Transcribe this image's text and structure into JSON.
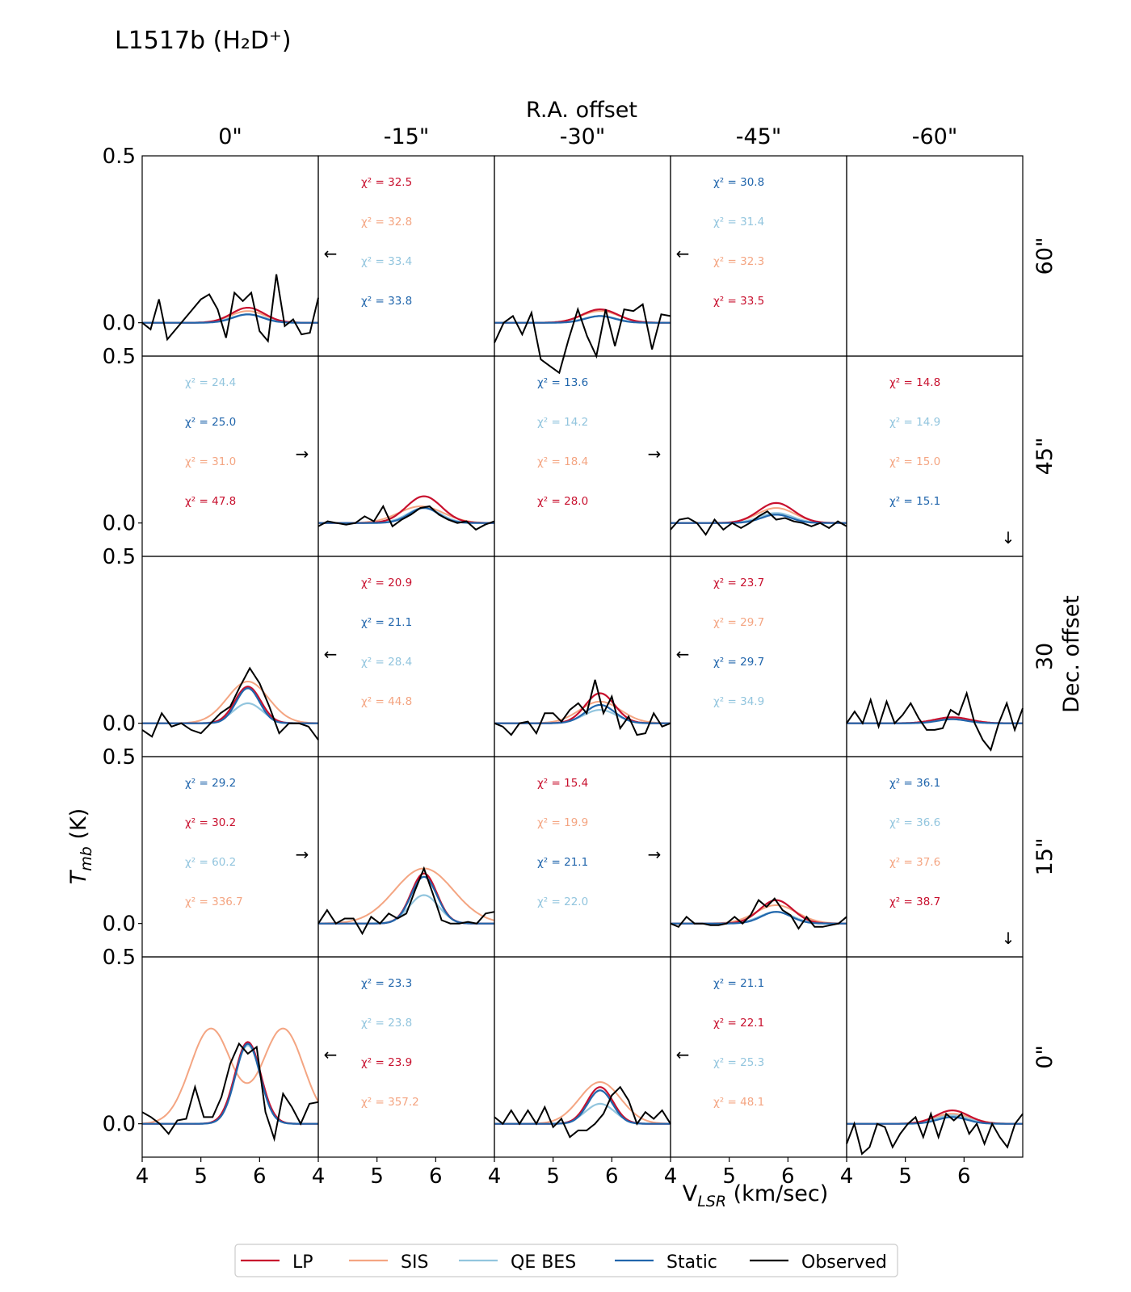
{
  "title": "L1517b (H₂D⁺)",
  "chart_data": {
    "type": "line",
    "title": "L1517b (H2D+)",
    "top_axis_label": "R.A. offset",
    "right_axis_label": "Dec. offset",
    "xlabel": "V_LSR (km/sec)",
    "ylabel": "T_mb (K)",
    "xlim": [
      4,
      7
    ],
    "ylim": [
      -0.1,
      0.5
    ],
    "x_ticks": [
      "4",
      "5",
      "6"
    ],
    "y_ticks": [
      "0.0",
      "0.5"
    ],
    "columns": [
      "0\"",
      "-15\"",
      "-30\"",
      "-45\"",
      "-60\""
    ],
    "rows": [
      "60\"",
      "45\"",
      "30",
      "15\"",
      "0\""
    ],
    "colors": {
      "LP": "#c8102e",
      "SIS": "#f4a582",
      "QE BES": "#92c5de",
      "Static": "#2166ac",
      "Observed": "#000000"
    },
    "legend": {
      "position": "bottom-center",
      "entries": [
        "LP",
        "SIS",
        "QE BES",
        "Static",
        "Observed"
      ]
    },
    "chi_label": "χ² =",
    "panels": [
      {
        "row": 0,
        "col": 0,
        "arrow": "",
        "models": {
          "LP": {
            "amp": 0.045,
            "center": 5.8,
            "sigma": 0.28
          },
          "SIS": {
            "amp": 0.035,
            "center": 5.8,
            "sigma": 0.3
          },
          "QE BES": {
            "amp": 0.025,
            "center": 5.8,
            "sigma": 0.28
          },
          "Static": {
            "amp": 0.025,
            "center": 5.8,
            "sigma": 0.25
          }
        },
        "observed": [
          0.0,
          -0.02,
          0.07,
          -0.05,
          -0.02,
          0.01,
          0.04,
          0.07,
          0.085,
          0.04,
          -0.045,
          0.09,
          0.065,
          0.09,
          -0.025,
          -0.055,
          0.145,
          -0.01,
          0.01,
          -0.035,
          -0.03,
          0.075
        ],
        "chi2": []
      },
      {
        "row": 0,
        "col": 1,
        "arrow": "←",
        "models": null,
        "observed": [],
        "chi2": [
          {
            "model": "LP",
            "value": "32.5"
          },
          {
            "model": "SIS",
            "value": "32.8"
          },
          {
            "model": "QE BES",
            "value": "33.4"
          },
          {
            "model": "Static",
            "value": "33.8"
          }
        ]
      },
      {
        "row": 0,
        "col": 2,
        "arrow": "",
        "models": {
          "LP": {
            "amp": 0.04,
            "center": 5.8,
            "sigma": 0.3
          },
          "SIS": {
            "amp": 0.035,
            "center": 5.8,
            "sigma": 0.32
          },
          "QE BES": {
            "amp": 0.02,
            "center": 5.8,
            "sigma": 0.28
          },
          "Static": {
            "amp": 0.02,
            "center": 5.8,
            "sigma": 0.25
          }
        },
        "observed": [
          -0.06,
          0.0,
          0.02,
          -0.035,
          0.03,
          -0.11,
          -0.13,
          -0.15,
          -0.05,
          0.04,
          -0.04,
          -0.1,
          0.04,
          -0.07,
          0.04,
          0.035,
          0.055,
          -0.08,
          0.025,
          0.02
        ],
        "chi2": []
      },
      {
        "row": 0,
        "col": 3,
        "arrow": "←",
        "models": null,
        "observed": [],
        "chi2": [
          {
            "model": "Static",
            "value": "30.8"
          },
          {
            "model": "QE BES",
            "value": "31.4"
          },
          {
            "model": "SIS",
            "value": "32.3"
          },
          {
            "model": "LP",
            "value": "33.5"
          }
        ]
      },
      {
        "row": 0,
        "col": 4,
        "arrow": "",
        "models": null,
        "observed": [],
        "chi2": []
      },
      {
        "row": 1,
        "col": 0,
        "arrow": "→",
        "models": null,
        "observed": [],
        "chi2": [
          {
            "model": "QE BES",
            "value": "24.4"
          },
          {
            "model": "Static",
            "value": "25.0"
          },
          {
            "model": "SIS",
            "value": "31.0"
          },
          {
            "model": "LP",
            "value": "47.8"
          }
        ]
      },
      {
        "row": 1,
        "col": 1,
        "arrow": "",
        "models": {
          "LP": {
            "amp": 0.08,
            "center": 5.8,
            "sigma": 0.3
          },
          "SIS": {
            "amp": 0.05,
            "center": 5.75,
            "sigma": 0.38
          },
          "QE BES": {
            "amp": 0.045,
            "center": 5.8,
            "sigma": 0.28
          },
          "Static": {
            "amp": 0.045,
            "center": 5.8,
            "sigma": 0.25
          }
        },
        "observed": [
          -0.01,
          0.005,
          0.0,
          -0.005,
          0.0,
          0.02,
          0.005,
          0.05,
          -0.01,
          0.01,
          0.025,
          0.045,
          0.05,
          0.025,
          0.01,
          0.0,
          0.005,
          -0.02,
          -0.005,
          0.005
        ],
        "chi2": []
      },
      {
        "row": 1,
        "col": 2,
        "arrow": "→",
        "models": null,
        "observed": [],
        "chi2": [
          {
            "model": "Static",
            "value": "13.6"
          },
          {
            "model": "QE BES",
            "value": "14.2"
          },
          {
            "model": "SIS",
            "value": "18.4"
          },
          {
            "model": "LP",
            "value": "28.0"
          }
        ]
      },
      {
        "row": 1,
        "col": 3,
        "arrow": "",
        "models": {
          "LP": {
            "amp": 0.06,
            "center": 5.8,
            "sigma": 0.3
          },
          "SIS": {
            "amp": 0.045,
            "center": 5.8,
            "sigma": 0.32
          },
          "QE BES": {
            "amp": 0.03,
            "center": 5.8,
            "sigma": 0.28
          },
          "Static": {
            "amp": 0.025,
            "center": 5.8,
            "sigma": 0.25
          }
        },
        "observed": [
          -0.02,
          0.01,
          0.015,
          0.0,
          -0.035,
          0.01,
          -0.02,
          0.0,
          -0.015,
          0.0,
          0.02,
          0.035,
          0.01,
          0.015,
          0.005,
          0.0,
          -0.01,
          0.0,
          -0.015,
          0.005,
          -0.01
        ],
        "chi2": []
      },
      {
        "row": 1,
        "col": 4,
        "arrow": "↓",
        "models": null,
        "observed": [],
        "chi2": [
          {
            "model": "LP",
            "value": "14.8"
          },
          {
            "model": "QE BES",
            "value": "14.9"
          },
          {
            "model": "SIS",
            "value": "15.0"
          },
          {
            "model": "Static",
            "value": "15.1"
          }
        ]
      },
      {
        "row": 2,
        "col": 0,
        "arrow": "",
        "models": {
          "LP": {
            "amp": 0.11,
            "center": 5.8,
            "sigma": 0.22
          },
          "SIS": {
            "amp": 0.125,
            "center": 5.8,
            "sigma": 0.35
          },
          "QE BES": {
            "amp": 0.06,
            "center": 5.8,
            "sigma": 0.25
          },
          "Static": {
            "amp": 0.105,
            "center": 5.8,
            "sigma": 0.2
          }
        },
        "observed": [
          -0.02,
          -0.04,
          0.03,
          -0.01,
          0.0,
          -0.02,
          -0.03,
          0.0,
          0.03,
          0.05,
          0.11,
          0.165,
          0.12,
          0.05,
          -0.03,
          0.0,
          0.0,
          -0.01,
          -0.05
        ],
        "chi2": []
      },
      {
        "row": 2,
        "col": 1,
        "arrow": "←",
        "models": null,
        "observed": [],
        "chi2": [
          {
            "model": "LP",
            "value": "20.9"
          },
          {
            "model": "Static",
            "value": "21.1"
          },
          {
            "model": "QE BES",
            "value": "28.4"
          },
          {
            "model": "SIS",
            "value": "44.8"
          }
        ]
      },
      {
        "row": 2,
        "col": 2,
        "arrow": "",
        "models": {
          "LP": {
            "amp": 0.09,
            "center": 5.8,
            "sigma": 0.25
          },
          "SIS": {
            "amp": 0.065,
            "center": 5.8,
            "sigma": 0.35
          },
          "QE BES": {
            "amp": 0.04,
            "center": 5.8,
            "sigma": 0.28
          },
          "Static": {
            "amp": 0.055,
            "center": 5.8,
            "sigma": 0.25
          }
        },
        "observed": [
          0.0,
          -0.01,
          -0.035,
          0.0,
          0.005,
          -0.03,
          0.03,
          0.03,
          0.005,
          0.04,
          0.06,
          0.03,
          0.13,
          0.03,
          0.08,
          -0.015,
          0.02,
          -0.035,
          -0.03,
          0.03,
          -0.01,
          0.0
        ],
        "chi2": []
      },
      {
        "row": 2,
        "col": 3,
        "arrow": "←",
        "models": null,
        "observed": [],
        "chi2": [
          {
            "model": "LP",
            "value": "23.7"
          },
          {
            "model": "SIS",
            "value": "29.7"
          },
          {
            "model": "Static",
            "value": "29.7"
          },
          {
            "model": "QE BES",
            "value": "34.9"
          }
        ]
      },
      {
        "row": 2,
        "col": 4,
        "arrow": "",
        "models": {
          "LP": {
            "amp": 0.018,
            "center": 5.8,
            "sigma": 0.3
          },
          "SIS": {
            "amp": 0.015,
            "center": 5.8,
            "sigma": 0.32
          },
          "QE BES": {
            "amp": 0.012,
            "center": 5.8,
            "sigma": 0.28
          },
          "Static": {
            "amp": 0.012,
            "center": 5.8,
            "sigma": 0.25
          }
        },
        "observed": [
          0.0,
          0.035,
          0.0,
          0.07,
          -0.01,
          0.065,
          0.0,
          0.025,
          0.06,
          0.015,
          -0.02,
          -0.02,
          -0.015,
          0.04,
          0.025,
          0.09,
          0.0,
          -0.05,
          -0.08,
          0.0,
          0.06,
          -0.02,
          0.045
        ],
        "chi2": []
      },
      {
        "row": 3,
        "col": 0,
        "arrow": "→",
        "models": null,
        "observed": [],
        "chi2": [
          {
            "model": "Static",
            "value": "29.2"
          },
          {
            "model": "LP",
            "value": "30.2"
          },
          {
            "model": "QE BES",
            "value": "60.2"
          },
          {
            "model": "SIS",
            "value": "336.7"
          }
        ]
      },
      {
        "row": 3,
        "col": 1,
        "arrow": "",
        "models": {
          "LP": {
            "amp": 0.15,
            "center": 5.8,
            "sigma": 0.22
          },
          "SIS": {
            "amp": 0.165,
            "center": 5.8,
            "sigma": 0.5
          },
          "QE BES": {
            "amp": 0.085,
            "center": 5.8,
            "sigma": 0.25
          },
          "Static": {
            "amp": 0.14,
            "center": 5.8,
            "sigma": 0.22
          }
        },
        "observed": [
          0.0,
          0.04,
          0.0,
          0.015,
          0.015,
          -0.03,
          0.02,
          0.0,
          0.03,
          0.015,
          0.03,
          0.1,
          0.165,
          0.09,
          0.01,
          0.0,
          0.0,
          0.005,
          0.0,
          0.03,
          0.035
        ],
        "chi2": []
      },
      {
        "row": 3,
        "col": 2,
        "arrow": "→",
        "models": null,
        "observed": [],
        "chi2": [
          {
            "model": "LP",
            "value": "15.4"
          },
          {
            "model": "SIS",
            "value": "19.9"
          },
          {
            "model": "Static",
            "value": "21.1"
          },
          {
            "model": "QE BES",
            "value": "22.0"
          }
        ]
      },
      {
        "row": 3,
        "col": 3,
        "arrow": "",
        "models": {
          "LP": {
            "amp": 0.07,
            "center": 5.8,
            "sigma": 0.28
          },
          "SIS": {
            "amp": 0.055,
            "center": 5.8,
            "sigma": 0.35
          },
          "QE BES": {
            "amp": 0.035,
            "center": 5.8,
            "sigma": 0.28
          },
          "Static": {
            "amp": 0.035,
            "center": 5.8,
            "sigma": 0.25
          }
        },
        "observed": [
          0.0,
          -0.01,
          0.02,
          0.0,
          0.0,
          -0.005,
          -0.005,
          0.0,
          0.02,
          0.0,
          0.025,
          0.07,
          0.05,
          0.075,
          0.04,
          0.025,
          -0.015,
          0.02,
          -0.01,
          -0.01,
          -0.005,
          0.0,
          0.02
        ],
        "chi2": []
      },
      {
        "row": 3,
        "col": 4,
        "arrow": "↓",
        "models": null,
        "observed": [],
        "chi2": [
          {
            "model": "Static",
            "value": "36.1"
          },
          {
            "model": "QE BES",
            "value": "36.6"
          },
          {
            "model": "SIS",
            "value": "37.6"
          },
          {
            "model": "LP",
            "value": "38.7"
          }
        ]
      },
      {
        "row": 4,
        "col": 0,
        "arrow": "",
        "models": {
          "LP": {
            "amp": 0.245,
            "center": 5.8,
            "sigma": 0.22
          },
          "SIS": {
            "type": "double",
            "amp": 0.285,
            "centers": [
              5.17,
              6.4
            ],
            "sigma": 0.35,
            "dip": 0.19
          },
          "QE BES": {
            "amp": 0.235,
            "center": 5.8,
            "sigma": 0.22
          },
          "Static": {
            "amp": 0.24,
            "center": 5.8,
            "sigma": 0.21
          }
        },
        "observed": [
          0.035,
          0.02,
          0.0,
          -0.03,
          0.01,
          0.015,
          0.11,
          0.02,
          0.02,
          0.08,
          0.18,
          0.24,
          0.21,
          0.23,
          0.035,
          -0.045,
          0.09,
          0.05,
          0.0,
          0.06,
          0.065
        ],
        "chi2": []
      },
      {
        "row": 4,
        "col": 1,
        "arrow": "←",
        "models": null,
        "observed": [],
        "chi2": [
          {
            "model": "Static",
            "value": "23.3"
          },
          {
            "model": "QE BES",
            "value": "23.8"
          },
          {
            "model": "LP",
            "value": "23.9"
          },
          {
            "model": "SIS",
            "value": "357.2"
          }
        ]
      },
      {
        "row": 4,
        "col": 2,
        "arrow": "",
        "models": {
          "LP": {
            "amp": 0.11,
            "center": 5.8,
            "sigma": 0.22
          },
          "SIS": {
            "amp": 0.125,
            "center": 5.8,
            "sigma": 0.35
          },
          "QE BES": {
            "amp": 0.06,
            "center": 5.8,
            "sigma": 0.25
          },
          "Static": {
            "amp": 0.1,
            "center": 5.8,
            "sigma": 0.21
          }
        },
        "observed": [
          0.02,
          0.0,
          0.04,
          0.0,
          0.04,
          0.0,
          0.05,
          -0.01,
          0.015,
          -0.04,
          -0.02,
          -0.02,
          0.0,
          0.03,
          0.085,
          0.11,
          0.07,
          0.0,
          0.035,
          0.015,
          0.04,
          0.0
        ],
        "chi2": []
      },
      {
        "row": 4,
        "col": 3,
        "arrow": "←",
        "models": null,
        "observed": [],
        "chi2": [
          {
            "model": "Static",
            "value": "21.1"
          },
          {
            "model": "LP",
            "value": "22.1"
          },
          {
            "model": "QE BES",
            "value": "25.3"
          },
          {
            "model": "SIS",
            "value": "48.1"
          }
        ]
      },
      {
        "row": 4,
        "col": 4,
        "arrow": "",
        "models": {
          "LP": {
            "amp": 0.04,
            "center": 5.8,
            "sigma": 0.28
          },
          "SIS": {
            "amp": 0.03,
            "center": 5.8,
            "sigma": 0.32
          },
          "QE BES": {
            "amp": 0.025,
            "center": 5.8,
            "sigma": 0.28
          },
          "Static": {
            "amp": 0.02,
            "center": 5.8,
            "sigma": 0.25
          }
        },
        "observed": [
          -0.06,
          0.0,
          -0.09,
          -0.07,
          0.0,
          -0.01,
          -0.07,
          -0.03,
          0.0,
          0.02,
          -0.04,
          0.03,
          -0.04,
          0.03,
          0.01,
          0.03,
          -0.03,
          0.0,
          -0.06,
          0.0,
          -0.04,
          -0.07,
          0.0,
          0.03
        ],
        "chi2": []
      }
    ]
  }
}
